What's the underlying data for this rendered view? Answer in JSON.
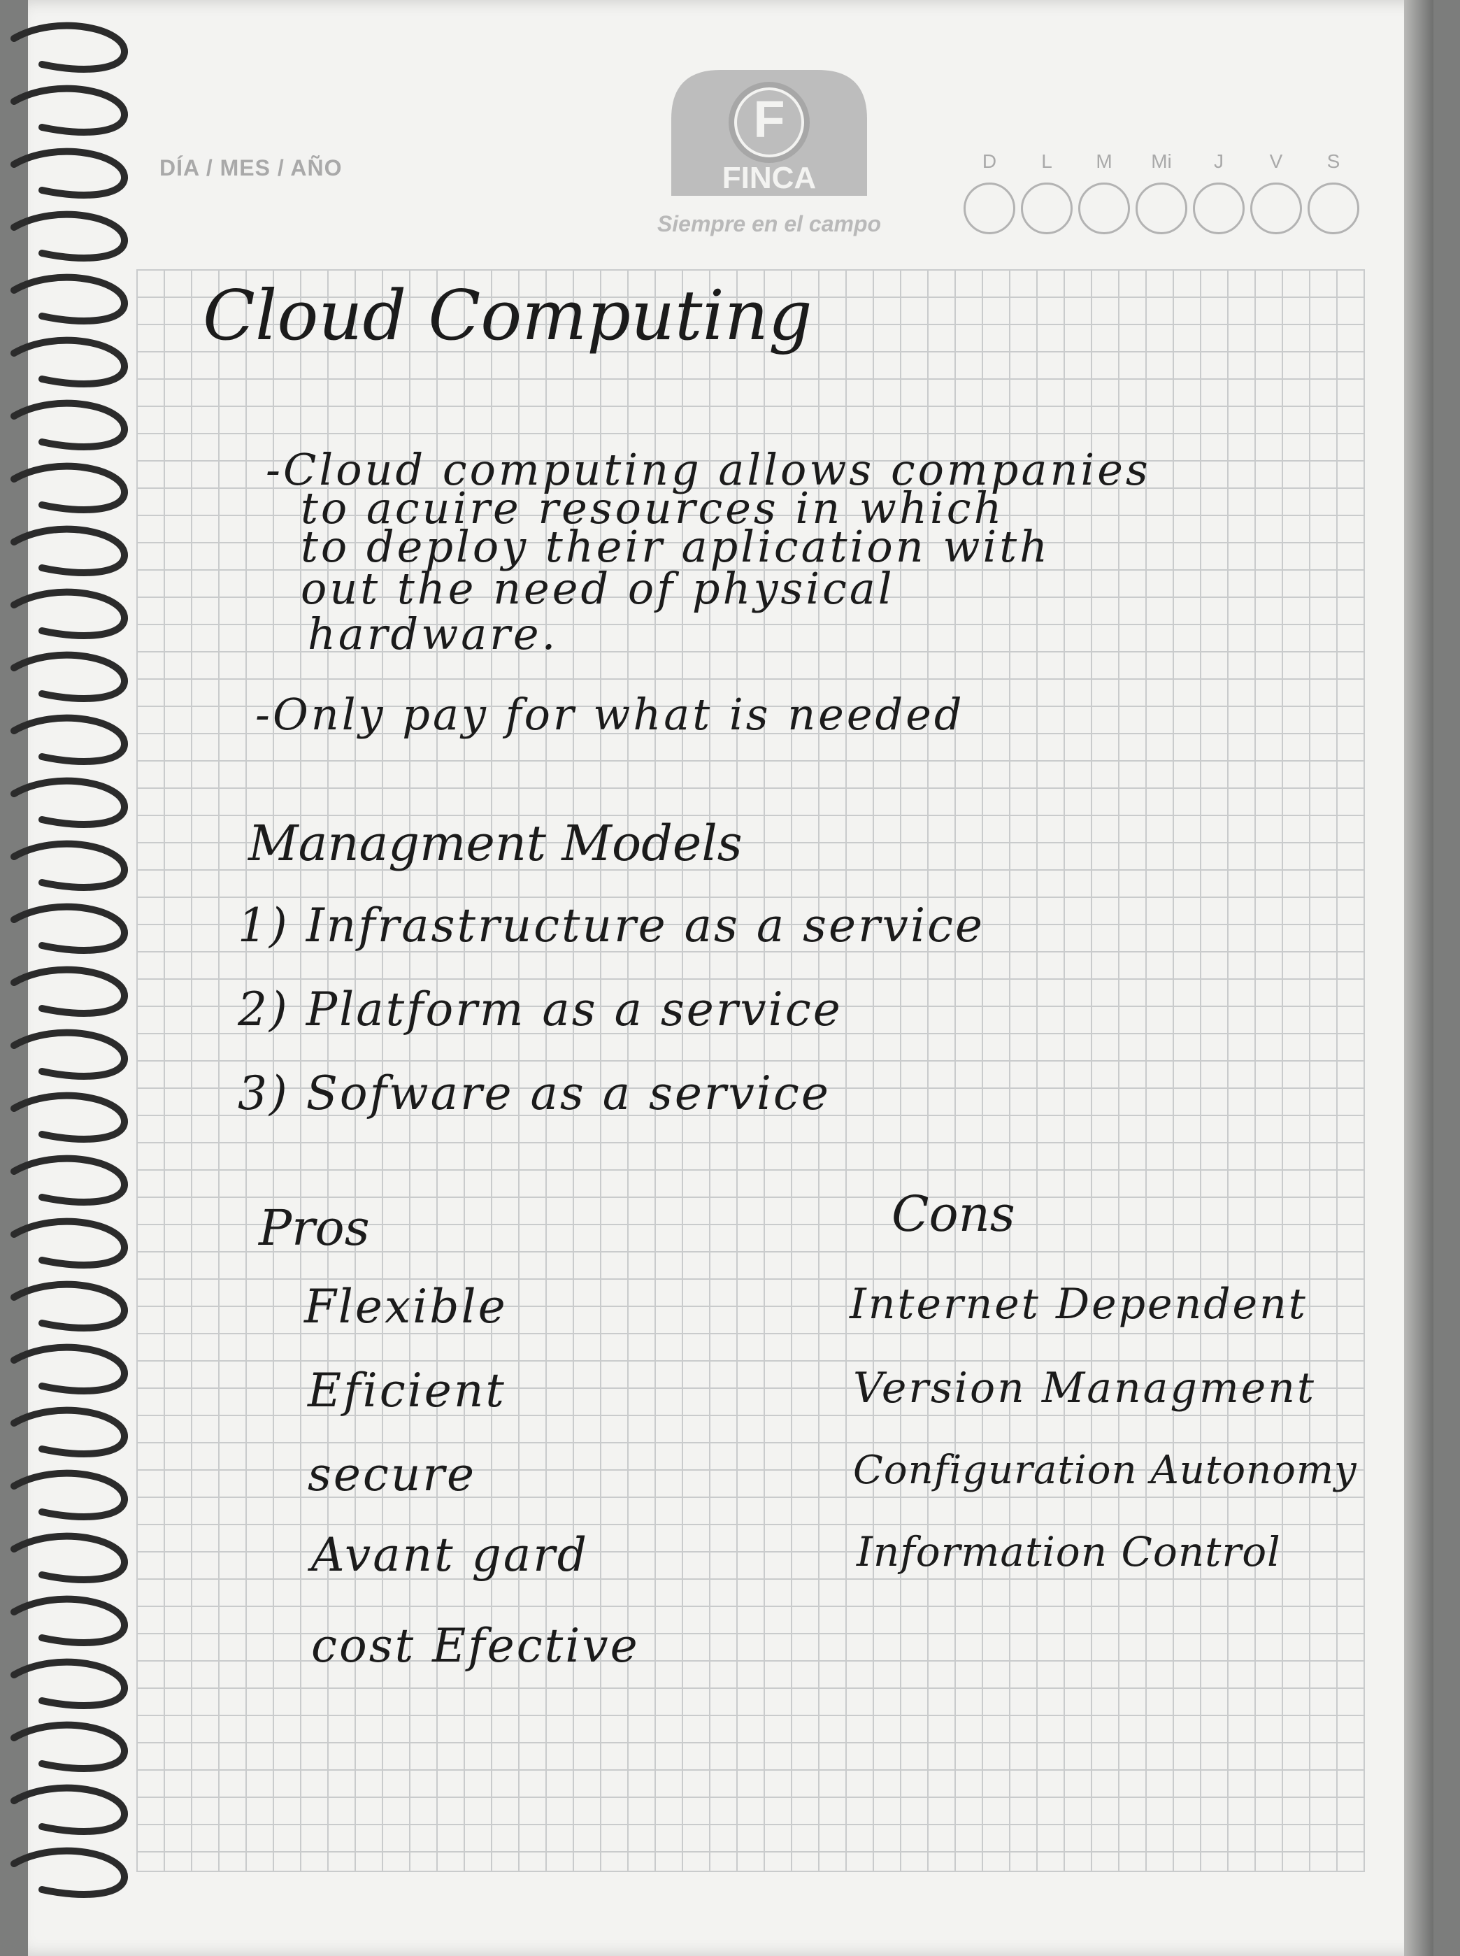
{
  "header": {
    "date_label": "DÍA / MES / AÑO",
    "brand_letter": "F",
    "brand_name": "FINCA",
    "brand_slogan": "Siempre en el campo",
    "weekdays": [
      "D",
      "L",
      "M",
      "Mi",
      "J",
      "V",
      "S"
    ]
  },
  "notes": {
    "title": "Cloud Computing",
    "paragraph_lines": [
      "-Cloud computing allows companies",
      "to acuire resources in which",
      "to deploy their aplication with",
      "out the need of physical",
      "hardware."
    ],
    "bullet_2": "-Only pay for what is needed",
    "models_heading": "Managment Models",
    "models": [
      "1) Infrastructure as a service",
      "2) Platform as a service",
      "3) Sofware as a service"
    ],
    "pros_heading": "Pros",
    "pros": [
      "Flexible",
      "Eficient",
      "secure",
      "Avant gard",
      "cost Efective"
    ],
    "cons_heading": "Cons",
    "cons": [
      "Internet Dependent",
      "Version Managment",
      "Configuration Autonomy",
      "Information Control"
    ]
  },
  "colors": {
    "paper": "#f3f3f1",
    "grid": "#c9cbcc",
    "ink": "#1b1b1b",
    "print": "#a9a9a9"
  }
}
